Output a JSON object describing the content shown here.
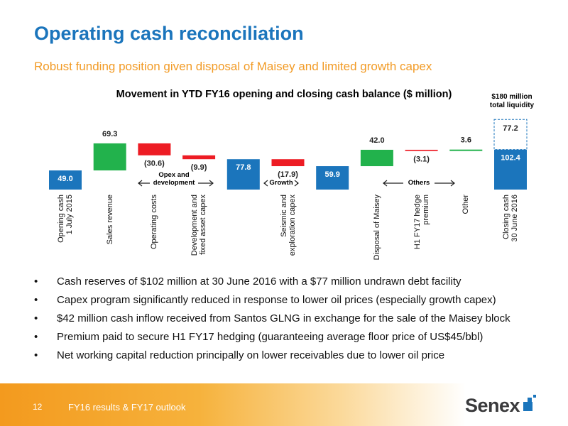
{
  "slide": {
    "title": "Operating cash reconciliation",
    "subtitle": "Robust funding position given disposal of Maisey and limited growth capex"
  },
  "chart_data": {
    "type": "waterfall",
    "title": "Movement in YTD FY16 opening and closing cash balance ($ million)",
    "categories": [
      "Opening cash 1 July 2015",
      "Sales revenue",
      "Operating costs",
      "Development and fixed asset capex",
      null,
      "Seismic and exploration capex",
      null,
      "Disposal of Maisey",
      "H1 FY17 hedge premium",
      "Other",
      "Closing cash 30 June 2016"
    ],
    "values": [
      49.0,
      69.3,
      -30.6,
      -9.9,
      77.8,
      -17.9,
      59.9,
      42.0,
      -3.1,
      3.6,
      102.4
    ],
    "value_labels": [
      "49.0",
      "69.3",
      "(30.6)",
      "(9.9)",
      "77.8",
      "(17.9)",
      "59.9",
      "42.0",
      "(3.1)",
      "3.6",
      "102.4"
    ],
    "measure": [
      "total",
      "relative",
      "relative",
      "relative",
      "total",
      "relative",
      "total",
      "relative",
      "relative",
      "relative",
      "total"
    ],
    "colors": {
      "total": "#1b75bc",
      "increase": "#22b24c",
      "decrease": "#ed1c24"
    },
    "facility": {
      "value": 77.2,
      "label": "77.2"
    },
    "annotation": "$180 million total liquidity",
    "groups": [
      "Opex and development",
      "Growth",
      "Others"
    ]
  },
  "bullets": [
    "Cash reserves of $102 million at 30 June 2016 with a $77 million undrawn debt facility",
    "Capex program significantly reduced in response to lower oil prices (especially growth capex)",
    "$42 million cash inflow received from Santos GLNG in exchange for the sale of the Maisey block",
    "Premium paid to secure H1 FY17 hedging (guaranteeing average floor price of US$45/bbl)",
    "Net working capital reduction principally on lower receivables due to lower oil price"
  ],
  "footer": {
    "page": "12",
    "text": "FY16 results & FY17 outlook",
    "logo": "Senex"
  }
}
